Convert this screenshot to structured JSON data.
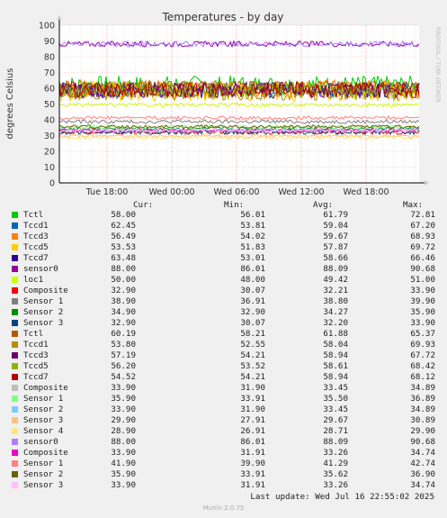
{
  "chart_data": {
    "type": "line",
    "title": "Temperatures - by day",
    "ylabel": "degrees Celsius",
    "ylim": [
      0,
      100
    ],
    "yticks": [
      0,
      10,
      20,
      30,
      40,
      50,
      60,
      70,
      80,
      90,
      100
    ],
    "xticks": [
      "Tue 18:00",
      "Wed 00:00",
      "Wed 06:00",
      "Wed 12:00",
      "Wed 18:00"
    ],
    "watermark": "RRDTOOL / TOBI OETIKER",
    "grid": true,
    "series": [
      {
        "name": "Tctl",
        "color": "#00cc00",
        "cur": "58.00",
        "min": "56.01",
        "avg": "61.79",
        "max": "72.81"
      },
      {
        "name": "Tccd1",
        "color": "#0066b3",
        "cur": "62.45",
        "min": "53.81",
        "avg": "59.04",
        "max": "67.20"
      },
      {
        "name": "Tccd3",
        "color": "#ff8000",
        "cur": "56.49",
        "min": "54.02",
        "avg": "59.67",
        "max": "68.93"
      },
      {
        "name": "Tccd5",
        "color": "#ffcc00",
        "cur": "53.53",
        "min": "51.83",
        "avg": "57.87",
        "max": "69.72"
      },
      {
        "name": "Tccd7",
        "color": "#330099",
        "cur": "63.48",
        "min": "53.01",
        "avg": "58.66",
        "max": "66.46"
      },
      {
        "name": "sensor0",
        "color": "#990099",
        "cur": "88.00",
        "min": "86.01",
        "avg": "88.09",
        "max": "90.68"
      },
      {
        "name": "loc1",
        "color": "#ccff00",
        "cur": "50.00",
        "min": "48.00",
        "avg": "49.42",
        "max": "51.00"
      },
      {
        "name": "Composite",
        "color": "#ff0000",
        "cur": "32.90",
        "min": "30.07",
        "avg": "32.21",
        "max": "33.90"
      },
      {
        "name": "Sensor 1",
        "color": "#808080",
        "cur": "38.90",
        "min": "36.91",
        "avg": "38.80",
        "max": "39.90"
      },
      {
        "name": "Sensor 2",
        "color": "#008f00",
        "cur": "34.90",
        "min": "32.90",
        "avg": "34.27",
        "max": "35.90"
      },
      {
        "name": "Sensor 3",
        "color": "#00487d",
        "cur": "32.90",
        "min": "30.07",
        "avg": "32.20",
        "max": "33.90"
      },
      {
        "name": "Tctl",
        "color": "#b35a00",
        "cur": "60.19",
        "min": "58.21",
        "avg": "61.88",
        "max": "65.37"
      },
      {
        "name": "Tccd1",
        "color": "#b38f00",
        "cur": "53.80",
        "min": "52.55",
        "avg": "58.04",
        "max": "69.93"
      },
      {
        "name": "Tccd3",
        "color": "#6b006b",
        "cur": "57.19",
        "min": "54.21",
        "avg": "58.94",
        "max": "67.72"
      },
      {
        "name": "Tccd5",
        "color": "#8fb300",
        "cur": "56.20",
        "min": "53.52",
        "avg": "58.61",
        "max": "68.42"
      },
      {
        "name": "Tccd7",
        "color": "#b30000",
        "cur": "54.52",
        "min": "54.21",
        "avg": "58.94",
        "max": "68.12"
      },
      {
        "name": "Composite",
        "color": "#bebebe",
        "cur": "33.90",
        "min": "31.90",
        "avg": "33.45",
        "max": "34.89"
      },
      {
        "name": "Sensor 1",
        "color": "#80ff80",
        "cur": "35.90",
        "min": "33.91",
        "avg": "35.50",
        "max": "36.89"
      },
      {
        "name": "Sensor 2",
        "color": "#80c9ff",
        "cur": "33.90",
        "min": "31.90",
        "avg": "33.45",
        "max": "34.89"
      },
      {
        "name": "Sensor 3",
        "color": "#ffc080",
        "cur": "29.90",
        "min": "27.91",
        "avg": "29.67",
        "max": "30.89"
      },
      {
        "name": "Sensor 4",
        "color": "#ffe680",
        "cur": "28.90",
        "min": "26.91",
        "avg": "28.71",
        "max": "29.90"
      },
      {
        "name": "sensor0",
        "color": "#aa80ff",
        "cur": "88.00",
        "min": "86.01",
        "avg": "88.09",
        "max": "90.68"
      },
      {
        "name": "Composite",
        "color": "#ee00cc",
        "cur": "33.90",
        "min": "31.91",
        "avg": "33.26",
        "max": "34.74"
      },
      {
        "name": "Sensor 1",
        "color": "#ff8080",
        "cur": "41.90",
        "min": "39.90",
        "avg": "41.29",
        "max": "42.74"
      },
      {
        "name": "Sensor 2",
        "color": "#666600",
        "cur": "35.90",
        "min": "33.91",
        "avg": "35.62",
        "max": "36.90"
      },
      {
        "name": "Sensor 3",
        "color": "#ffbfff",
        "cur": "33.90",
        "min": "31.91",
        "avg": "33.26",
        "max": "34.74"
      }
    ]
  },
  "legend_headers": {
    "cur": "Cur:",
    "min": "Min:",
    "avg": "Avg:",
    "max": "Max:"
  },
  "footer": {
    "last_update": "Last update: Wed Jul 16 22:55:02 2025",
    "version": "Munin 2.0.75"
  }
}
